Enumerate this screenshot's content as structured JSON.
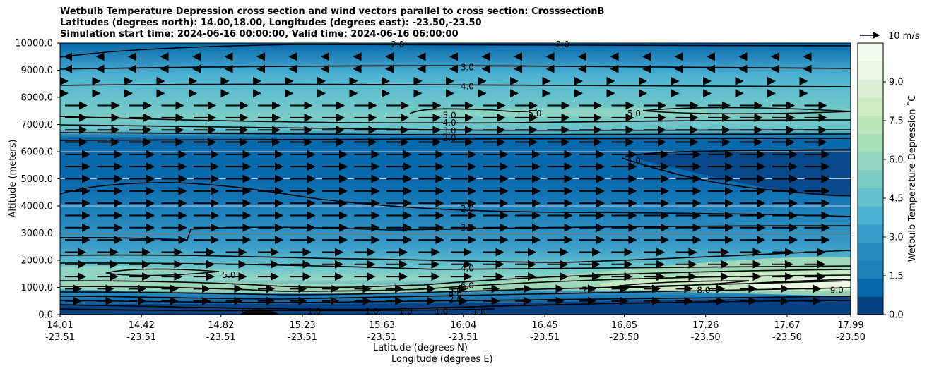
{
  "chart_data": {
    "type": "contour",
    "title": [
      "Wetbulb Temperature Depression cross section and wind vectors parallel to cross section: CrosssectionB",
      "Latitudes (degrees north): 14.00,18.00, Longitudes (degrees east): -23.50,-23.50",
      "Simulation start time: 2024-06-16 00:00:00, Valid time: 2024-06-16 06:00:00"
    ],
    "ylabel": "Altitude (meters)",
    "xlabel_lat": "Latitude (degrees N)",
    "xlabel_lon": "Longitude (degrees E)",
    "ylim": [
      0,
      10000
    ],
    "yticks": [
      "0.0",
      "1000.0",
      "2000.0",
      "3000.0",
      "4000.0",
      "5000.0",
      "6000.0",
      "7000.0",
      "8000.0",
      "9000.0",
      "10000.0"
    ],
    "xticks": [
      {
        "lat": "14.01",
        "lon": "-23.51"
      },
      {
        "lat": "14.42",
        "lon": "-23.51"
      },
      {
        "lat": "14.82",
        "lon": "-23.51"
      },
      {
        "lat": "15.23",
        "lon": "-23.51"
      },
      {
        "lat": "15.63",
        "lon": "-23.51"
      },
      {
        "lat": "16.04",
        "lon": "-23.51"
      },
      {
        "lat": "16.45",
        "lon": "-23.51"
      },
      {
        "lat": "16.85",
        "lon": "-23.50"
      },
      {
        "lat": "17.26",
        "lon": "-23.50"
      },
      {
        "lat": "17.67",
        "lon": "-23.50"
      },
      {
        "lat": "17.99",
        "lon": "-23.50"
      }
    ],
    "grid_lines_y": [
      3000,
      4000,
      5000,
      6000
    ],
    "colorbar": {
      "label": "Wetbulb Temperature Depression ˚C",
      "range": [
        0,
        10.5
      ],
      "ticks": [
        "0.0",
        "1.5",
        "3.0",
        "4.5",
        "6.0",
        "7.5",
        "9.0"
      ],
      "colors": [
        "#084081",
        "#0868ac",
        "#1f7fb9",
        "#2b8cbe",
        "#3a9cc8",
        "#4eb3d3",
        "#66c2cc",
        "#7bccc4",
        "#92d6c3",
        "#a8ddb5",
        "#bde5be",
        "#ccebc5",
        "#ddf1d8",
        "#e8f6e2",
        "#f3faee"
      ]
    },
    "quiver_key": {
      "label": "10 m/s",
      "speed": 10
    },
    "contour_labels": [
      {
        "text": "2.0",
        "lat": 15.71,
        "alt": 9950
      },
      {
        "text": "2.0",
        "lat": 16.54,
        "alt": 9950
      },
      {
        "text": "3.0",
        "lat": 16.06,
        "alt": 9100
      },
      {
        "text": "4.0",
        "lat": 16.06,
        "alt": 8400
      },
      {
        "text": "5.0",
        "lat": 15.97,
        "alt": 7340
      },
      {
        "text": "5.0",
        "lat": 16.4,
        "alt": 7400
      },
      {
        "text": "5.0",
        "lat": 16.9,
        "alt": 7400
      },
      {
        "text": "4.0",
        "lat": 15.97,
        "alt": 7060
      },
      {
        "text": "3.0",
        "lat": 15.97,
        "alt": 6770
      },
      {
        "text": "2.0",
        "lat": 15.97,
        "alt": 6500
      },
      {
        "text": "1.0",
        "lat": 16.9,
        "alt": 5650
      },
      {
        "text": "2.0",
        "lat": 16.06,
        "alt": 3900
      },
      {
        "text": "3.0",
        "lat": 16.06,
        "alt": 3200
      },
      {
        "text": "4.0",
        "lat": 16.06,
        "alt": 1700
      },
      {
        "text": "5.0",
        "lat": 14.86,
        "alt": 1450
      },
      {
        "text": "6.0",
        "lat": 16.06,
        "alt": 1070
      },
      {
        "text": "5.0",
        "lat": 16.0,
        "alt": 890
      },
      {
        "text": "4.0",
        "lat": 16.0,
        "alt": 760
      },
      {
        "text": "2.0",
        "lat": 16.0,
        "alt": 560
      },
      {
        "text": "7.0",
        "lat": 16.67,
        "alt": 900
      },
      {
        "text": "8.0",
        "lat": 17.25,
        "alt": 900
      },
      {
        "text": "9.0",
        "lat": 17.92,
        "alt": 900
      },
      {
        "text": "1.0",
        "lat": 14.95,
        "alt": 120
      },
      {
        "text": "1.0",
        "lat": 15.29,
        "alt": 120
      },
      {
        "text": "1.0",
        "lat": 15.58,
        "alt": 120
      },
      {
        "text": "1.0",
        "lat": 15.75,
        "alt": 120
      },
      {
        "text": "1.0",
        "lat": 15.93,
        "alt": 120
      },
      {
        "text": "1.0",
        "lat": 16.12,
        "alt": 80
      }
    ]
  }
}
